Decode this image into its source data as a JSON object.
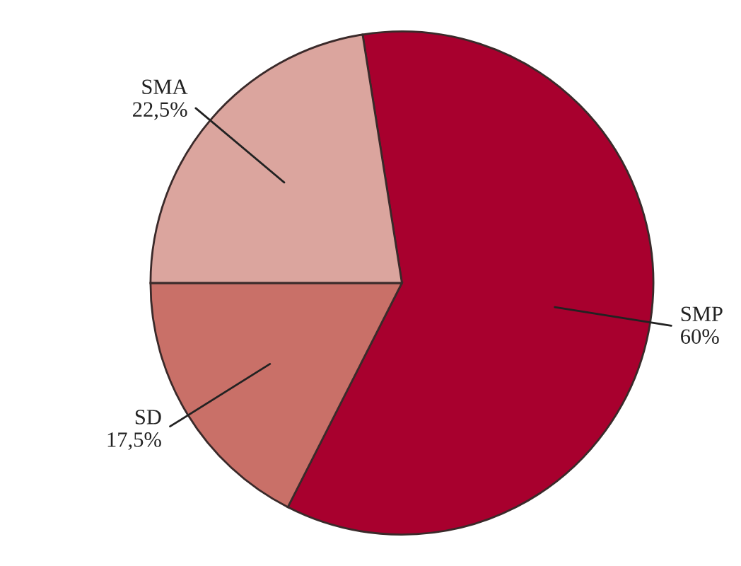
{
  "chart_data": {
    "type": "pie",
    "categories": [
      "SMP",
      "SD",
      "SMA"
    ],
    "values": [
      60,
      17.5,
      22.5
    ],
    "value_labels": [
      "60%",
      "17,5%",
      "22,5%"
    ],
    "colors": [
      "#a8002e",
      "#c97068",
      "#dba59e"
    ]
  }
}
